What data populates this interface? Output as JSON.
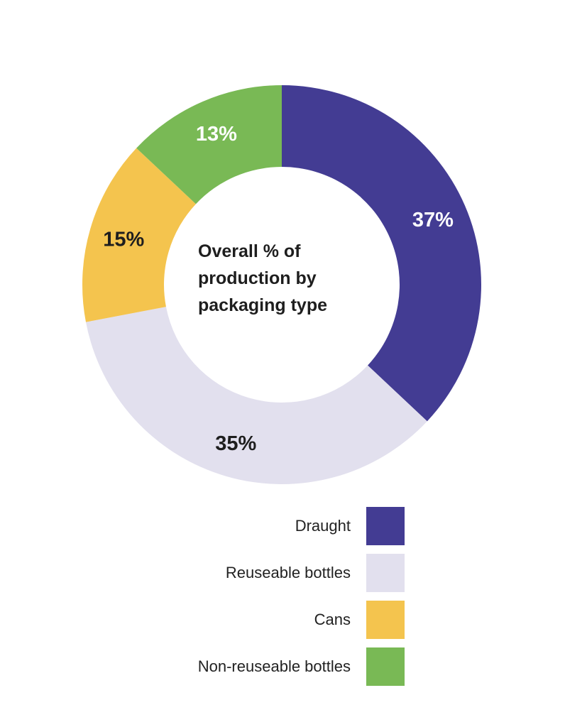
{
  "chart_data": {
    "type": "pie",
    "donut": true,
    "title": "Overall % of production by packaging type",
    "title_lines": [
      "Overall % of",
      "production by",
      "packaging type"
    ],
    "categories": [
      "Draught",
      "Reuseable bottles",
      "Cans",
      "Non-reuseable bottles"
    ],
    "values": [
      37,
      35,
      15,
      13
    ],
    "data_labels": [
      "37%",
      "35%",
      "15%",
      "13%"
    ],
    "colors": [
      "#433C93",
      "#E2E0EE",
      "#F4C44E",
      "#79B955"
    ],
    "label_colors": [
      "#ffffff",
      "#1e1e1e",
      "#1e1e1e",
      "#ffffff"
    ],
    "start_angle": "top",
    "direction": "clockwise",
    "legend_position": "bottom-center"
  }
}
